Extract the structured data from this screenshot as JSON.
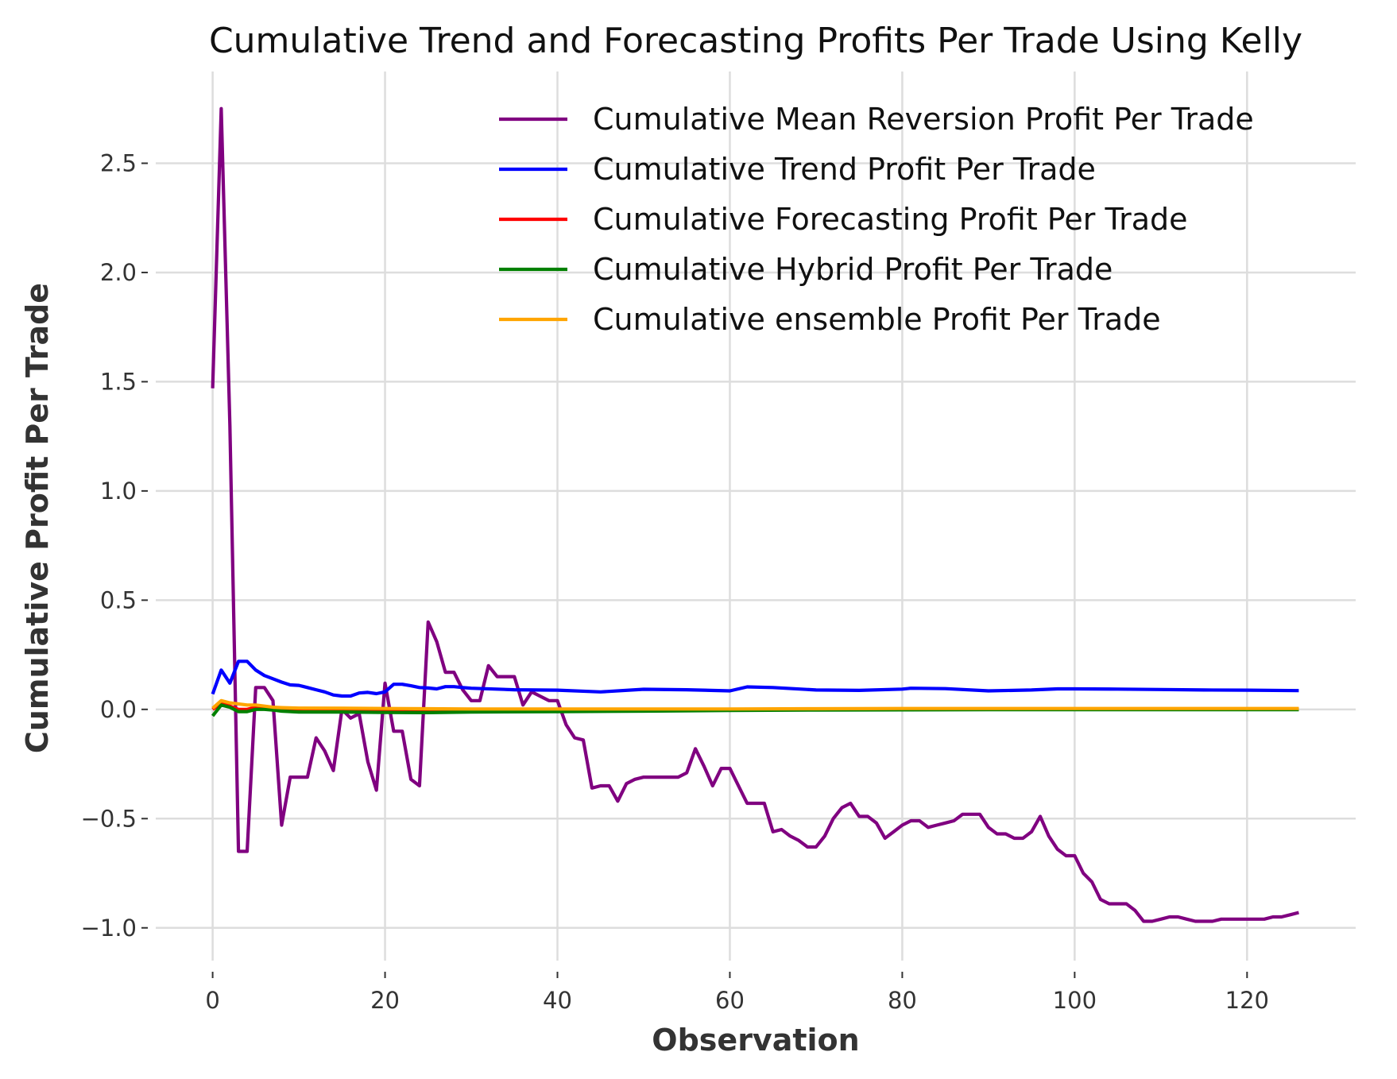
{
  "chart_data": {
    "type": "line",
    "title": "Cumulative Trend and Forecasting Profits Per Trade Using Kelly",
    "xlabel": "Observation",
    "ylabel": "Cumulative Profit Per Trade",
    "xlim": [
      -6.6,
      132.6
    ],
    "ylim": [
      -1.15,
      2.92
    ],
    "xticks": [
      0,
      20,
      40,
      60,
      80,
      100,
      120
    ],
    "xtick_labels": [
      "0",
      "20",
      "40",
      "60",
      "80",
      "100",
      "120"
    ],
    "yticks": [
      2.5,
      2.0,
      1.5,
      1.0,
      0.5,
      0.0,
      -0.5,
      -1.0
    ],
    "ytick_labels": [
      "2.5",
      "2.0",
      "1.5",
      "1.0",
      "0.5",
      "0.0",
      "−0.5",
      "−1.0"
    ],
    "grid": true,
    "legend_position": "upper-right",
    "series": [
      {
        "name": "Cumulative Mean Reversion Profit Per Trade",
        "color": "#800080",
        "x": [
          0,
          1,
          2,
          3,
          4,
          5,
          6,
          7,
          8,
          9,
          10,
          11,
          12,
          13,
          14,
          15,
          16,
          17,
          18,
          19,
          20,
          21,
          22,
          23,
          24,
          25,
          26,
          27,
          28,
          29,
          30,
          31,
          32,
          33,
          34,
          35,
          36,
          37,
          38,
          39,
          40,
          41,
          42,
          43,
          44,
          45,
          46,
          47,
          48,
          49,
          50,
          51,
          52,
          53,
          54,
          55,
          56,
          57,
          58,
          59,
          60,
          61,
          62,
          63,
          64,
          65,
          66,
          67,
          68,
          69,
          70,
          71,
          72,
          73,
          74,
          75,
          76,
          77,
          78,
          79,
          80,
          81,
          82,
          83,
          84,
          85,
          86,
          87,
          88,
          89,
          90,
          91,
          92,
          93,
          94,
          95,
          96,
          97,
          98,
          99,
          100,
          101,
          102,
          103,
          104,
          105,
          106,
          107,
          108,
          109,
          110,
          111,
          112,
          113,
          114,
          115,
          116,
          117,
          118,
          119,
          120,
          121,
          122,
          123,
          124,
          125,
          126
        ],
        "y": [
          1.47,
          2.75,
          1.3,
          -0.65,
          -0.65,
          0.1,
          0.1,
          0.04,
          -0.53,
          -0.31,
          -0.31,
          -0.31,
          -0.13,
          -0.19,
          -0.28,
          0.0,
          -0.04,
          -0.02,
          -0.24,
          -0.37,
          0.12,
          -0.1,
          -0.1,
          -0.32,
          -0.35,
          0.4,
          0.31,
          0.17,
          0.17,
          0.09,
          0.04,
          0.04,
          0.2,
          0.15,
          0.15,
          0.15,
          0.02,
          0.08,
          0.06,
          0.04,
          0.04,
          -0.07,
          -0.13,
          -0.14,
          -0.36,
          -0.35,
          -0.35,
          -0.42,
          -0.34,
          -0.32,
          -0.31,
          -0.31,
          -0.31,
          -0.31,
          -0.31,
          -0.29,
          -0.18,
          -0.26,
          -0.35,
          -0.27,
          -0.27,
          -0.35,
          -0.43,
          -0.43,
          -0.43,
          -0.56,
          -0.55,
          -0.58,
          -0.6,
          -0.63,
          -0.63,
          -0.58,
          -0.5,
          -0.45,
          -0.43,
          -0.49,
          -0.49,
          -0.52,
          -0.59,
          -0.56,
          -0.53,
          -0.51,
          -0.51,
          -0.54,
          -0.53,
          -0.52,
          -0.51,
          -0.48,
          -0.48,
          -0.48,
          -0.54,
          -0.57,
          -0.57,
          -0.59,
          -0.59,
          -0.56,
          -0.49,
          -0.58,
          -0.64,
          -0.67,
          -0.67,
          -0.75,
          -0.79,
          -0.87,
          -0.89,
          -0.89,
          -0.89,
          -0.92,
          -0.97,
          -0.97,
          -0.96,
          -0.95,
          -0.95,
          -0.96,
          -0.97,
          -0.97,
          -0.97,
          -0.96,
          -0.96,
          -0.96,
          -0.96,
          -0.96,
          -0.96,
          -0.95,
          -0.95,
          -0.94,
          -0.93
        ]
      },
      {
        "name": "Cumulative Trend Profit Per Trade",
        "color": "#0000ff",
        "x": [
          0,
          1,
          2,
          3,
          4,
          5,
          6,
          7,
          8,
          9,
          10,
          11,
          12,
          13,
          14,
          15,
          16,
          17,
          18,
          19,
          20,
          21,
          22,
          23,
          24,
          25,
          26,
          27,
          28,
          29,
          30,
          35,
          40,
          45,
          50,
          55,
          60,
          62,
          65,
          70,
          75,
          80,
          81,
          85,
          90,
          95,
          98,
          100,
          105,
          110,
          115,
          120,
          126
        ],
        "y": [
          0.07,
          0.18,
          0.12,
          0.22,
          0.22,
          0.18,
          0.155,
          0.14,
          0.125,
          0.112,
          0.11,
          0.1,
          0.09,
          0.08,
          0.066,
          0.061,
          0.061,
          0.075,
          0.078,
          0.072,
          0.08,
          0.115,
          0.115,
          0.108,
          0.1,
          0.098,
          0.094,
          0.104,
          0.104,
          0.1,
          0.097,
          0.09,
          0.088,
          0.08,
          0.092,
          0.09,
          0.085,
          0.103,
          0.1,
          0.089,
          0.087,
          0.093,
          0.097,
          0.095,
          0.085,
          0.089,
          0.094,
          0.094,
          0.093,
          0.091,
          0.089,
          0.088,
          0.086
        ]
      },
      {
        "name": "Cumulative Forecasting Profit Per Trade",
        "color": "#ff0000",
        "x": [
          0,
          1,
          2,
          3,
          4,
          5,
          6,
          7,
          8,
          10,
          15,
          20,
          30,
          40,
          50,
          60,
          70,
          80,
          90,
          100,
          110,
          126
        ],
        "y": [
          0.0,
          0.03,
          0.015,
          0.0,
          0.0,
          0.01,
          0.005,
          0.0,
          -0.003,
          -0.005,
          -0.006,
          -0.006,
          -0.004,
          -0.003,
          -0.002,
          0.0,
          0.0,
          0.001,
          0.001,
          0.001,
          0.001,
          0.001
        ]
      },
      {
        "name": "Cumulative Hybrid Profit Per Trade",
        "color": "#008000",
        "x": [
          0,
          1,
          2,
          3,
          4,
          5,
          6,
          7,
          8,
          10,
          15,
          20,
          25,
          30,
          40,
          50,
          60,
          70,
          80,
          90,
          100,
          110,
          126
        ],
        "y": [
          -0.03,
          0.02,
          0.01,
          -0.01,
          -0.01,
          0.0,
          0.0,
          -0.003,
          -0.008,
          -0.012,
          -0.012,
          -0.014,
          -0.015,
          -0.012,
          -0.01,
          -0.008,
          -0.005,
          -0.003,
          -0.002,
          -0.001,
          -0.001,
          -0.001,
          -0.001
        ]
      },
      {
        "name": "Cumulative ensemble Profit Per Trade",
        "color": "#ffa500",
        "x": [
          0,
          1,
          2,
          3,
          4,
          5,
          6,
          7,
          8,
          10,
          15,
          20,
          25,
          30,
          40,
          50,
          60,
          70,
          80,
          90,
          100,
          110,
          126
        ],
        "y": [
          0.005,
          0.04,
          0.03,
          0.025,
          0.02,
          0.02,
          0.015,
          0.01,
          0.008,
          0.006,
          0.005,
          0.004,
          0.003,
          0.002,
          0.002,
          0.002,
          0.002,
          0.003,
          0.004,
          0.004,
          0.004,
          0.004,
          0.004
        ]
      }
    ]
  }
}
